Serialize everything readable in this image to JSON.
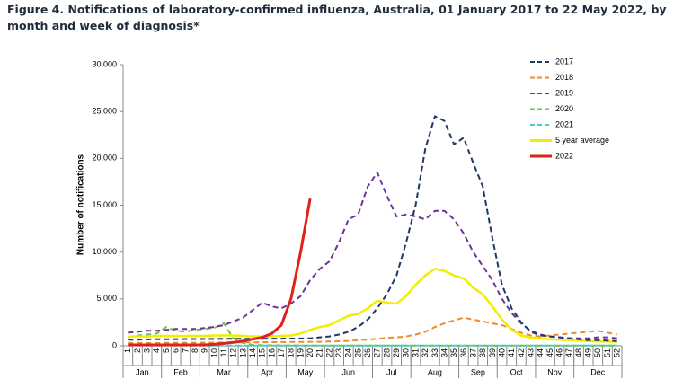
{
  "chart_data": {
    "type": "line",
    "title": "Figure 4. Notifications of laboratory-confirmed influenza, Australia, 01 January 2017 to 22 May 2022, by month and week of diagnosis*",
    "ylabel": "Number of notifications",
    "categories": [
      "1",
      "2",
      "3",
      "4",
      "5",
      "6",
      "7",
      "8",
      "9",
      "10",
      "11",
      "12",
      "13",
      "14",
      "15",
      "16",
      "17",
      "18",
      "19",
      "20",
      "21",
      "22",
      "23",
      "24",
      "25",
      "26",
      "27",
      "28",
      "29",
      "30",
      "31",
      "32",
      "33",
      "34",
      "35",
      "36",
      "37",
      "38",
      "39",
      "40",
      "41",
      "42",
      "43",
      "44",
      "45",
      "46",
      "47",
      "48",
      "49",
      "50",
      "51",
      "52"
    ],
    "months": [
      "Jan",
      "Feb",
      "Mar",
      "Apr",
      "May",
      "Jun",
      "Jul",
      "Aug",
      "Sep",
      "Oct",
      "Nov",
      "Dec"
    ],
    "ylim": [
      0,
      30000
    ],
    "yticks": [
      0,
      {
        "value": 5000,
        "label": "5,000"
      },
      {
        "value": 10000,
        "label": "10,000"
      },
      {
        "value": 15000,
        "label": "15,000"
      },
      {
        "value": 20000,
        "label": "20,000"
      },
      {
        "value": 25000,
        "label": "25,000"
      },
      {
        "value": 30000,
        "label": "30,000"
      }
    ],
    "legend": "top-right",
    "series": [
      {
        "name": "2017",
        "color": "#1f3864",
        "dashed": true,
        "values": [
          650,
          650,
          680,
          700,
          700,
          700,
          720,
          720,
          720,
          730,
          740,
          740,
          750,
          750,
          750,
          760,
          760,
          770,
          780,
          800,
          900,
          1000,
          1200,
          1500,
          2000,
          2800,
          4000,
          5500,
          7500,
          11000,
          15000,
          21000,
          24500,
          24000,
          21500,
          22200,
          19500,
          17000,
          11500,
          6500,
          4000,
          2500,
          1500,
          1100,
          1000,
          900,
          800,
          700,
          600,
          600,
          550,
          500
        ]
      },
      {
        "name": "2018",
        "color": "#f4892c",
        "dashed": true,
        "values": [
          300,
          300,
          300,
          300,
          320,
          320,
          330,
          330,
          340,
          340,
          350,
          350,
          360,
          360,
          370,
          380,
          390,
          400,
          400,
          420,
          420,
          450,
          480,
          520,
          600,
          650,
          750,
          850,
          900,
          1000,
          1200,
          1500,
          2000,
          2400,
          2700,
          3000,
          2800,
          2600,
          2400,
          2200,
          1800,
          1400,
          1100,
          1000,
          1100,
          1200,
          1300,
          1400,
          1500,
          1600,
          1400,
          1200
        ]
      },
      {
        "name": "2019",
        "color": "#7030a0",
        "dashed": true,
        "values": [
          1400,
          1500,
          1600,
          1600,
          1700,
          1800,
          1800,
          1800,
          1900,
          2000,
          2200,
          2600,
          3000,
          3800,
          4600,
          4200,
          4000,
          4500,
          5300,
          7000,
          8200,
          9000,
          11000,
          13500,
          14000,
          17000,
          18500,
          16000,
          13800,
          14000,
          13800,
          13500,
          14400,
          14400,
          13500,
          12000,
          10000,
          8500,
          7000,
          5000,
          3500,
          2400,
          1600,
          1200,
          1000,
          900,
          800,
          800,
          800,
          900,
          900,
          800
        ]
      },
      {
        "name": "2020",
        "color": "#70c040",
        "dashed": true,
        "values": [
          900,
          1100,
          1200,
          1300,
          2000,
          1600,
          1500,
          1700,
          1800,
          1900,
          2400,
          800,
          300,
          100,
          60,
          50,
          40,
          40,
          30,
          30,
          30,
          30,
          30,
          30,
          30,
          30,
          30,
          30,
          30,
          30,
          30,
          30,
          30,
          30,
          30,
          30,
          30,
          30,
          30,
          30,
          30,
          30,
          30,
          30,
          30,
          30,
          30,
          30,
          30,
          30,
          30,
          30
        ]
      },
      {
        "name": "2021",
        "color": "#4dc8d8",
        "dashed": true,
        "values": [
          20,
          20,
          20,
          20,
          20,
          20,
          20,
          20,
          20,
          20,
          20,
          20,
          20,
          20,
          20,
          20,
          20,
          20,
          20,
          20,
          20,
          20,
          20,
          20,
          20,
          20,
          20,
          20,
          20,
          20,
          20,
          20,
          20,
          20,
          20,
          20,
          20,
          20,
          20,
          20,
          20,
          20,
          20,
          20,
          20,
          20,
          20,
          20,
          20,
          20,
          20,
          20
        ]
      },
      {
        "name": "5 year average",
        "color": "#f2ee00",
        "dashed": false,
        "values": [
          1000,
          1000,
          1000,
          1050,
          1050,
          1050,
          1050,
          1050,
          1050,
          1100,
          1100,
          1100,
          1050,
          1000,
          1000,
          1000,
          1050,
          1100,
          1300,
          1700,
          2000,
          2200,
          2700,
          3200,
          3400,
          4000,
          4800,
          4600,
          4500,
          5300,
          6500,
          7500,
          8200,
          8000,
          7500,
          7200,
          6200,
          5500,
          4200,
          2800,
          1700,
          1100,
          900,
          800,
          700,
          650,
          600,
          550,
          500,
          450,
          450,
          400
        ]
      },
      {
        "name": "2022",
        "color": "#e0201b",
        "dashed": false,
        "values": [
          100,
          100,
          100,
          100,
          100,
          100,
          100,
          100,
          100,
          150,
          250,
          350,
          500,
          700,
          900,
          1300,
          2200,
          5000,
          10000,
          15700,
          null,
          null,
          null,
          null,
          null,
          null,
          null,
          null,
          null,
          null,
          null,
          null,
          null,
          null,
          null,
          null,
          null,
          null,
          null,
          null,
          null,
          null,
          null,
          null,
          null,
          null,
          null,
          null,
          null,
          null,
          null,
          null
        ]
      }
    ]
  }
}
